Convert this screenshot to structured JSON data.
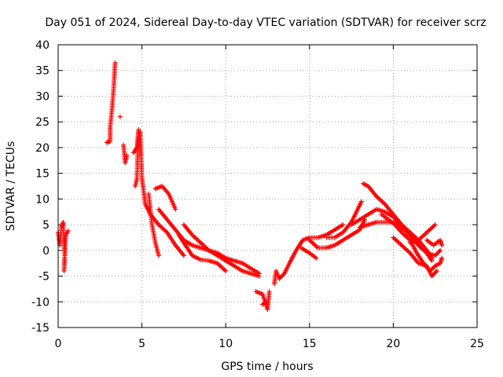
{
  "chart_data": {
    "type": "scatter",
    "title": "Day 051 of 2024, Sidereal Day-to-day VTEC variation (SDTVAR) for receiver scrz",
    "xlabel": "GPS time / hours",
    "ylabel": "SDTVAR / TECUs",
    "xlim": [
      0,
      25
    ],
    "ylim": [
      -15,
      40
    ],
    "xticks": [
      0,
      5,
      10,
      15,
      20,
      25
    ],
    "yticks": [
      -15,
      -10,
      -5,
      0,
      5,
      10,
      15,
      20,
      25,
      30,
      35,
      40
    ],
    "grid": true,
    "marker": "plus",
    "series_color": "#ff0000",
    "tracks": [
      {
        "name": "track-1",
        "points": [
          [
            0.0,
            3.5
          ],
          [
            0.1,
            1.0
          ],
          [
            0.2,
            4.5
          ],
          [
            0.3,
            5.5
          ],
          [
            0.4,
            -1.0
          ],
          [
            0.35,
            -4.0
          ],
          [
            0.45,
            3.0
          ],
          [
            0.6,
            3.8
          ]
        ]
      },
      {
        "name": "track-2",
        "points": [
          [
            2.9,
            21.0
          ],
          [
            3.1,
            21.2
          ],
          [
            3.1,
            24.0
          ],
          [
            3.2,
            27.0
          ],
          [
            3.3,
            31.0
          ],
          [
            3.4,
            36.5
          ]
        ]
      },
      {
        "name": "track-3",
        "points": [
          [
            3.7,
            26.0
          ]
        ]
      },
      {
        "name": "track-4",
        "points": [
          [
            3.9,
            20.5
          ],
          [
            4.0,
            17.0
          ],
          [
            4.1,
            18.5
          ]
        ]
      },
      {
        "name": "track-5",
        "points": [
          [
            4.5,
            19.0
          ],
          [
            4.7,
            20.0
          ],
          [
            4.8,
            23.5
          ],
          [
            4.7,
            14.0
          ],
          [
            4.6,
            12.5
          ]
        ]
      },
      {
        "name": "track-6",
        "points": [
          [
            4.9,
            23.0
          ],
          [
            5.0,
            14.0
          ],
          [
            5.2,
            9.0
          ],
          [
            5.5,
            7.0
          ],
          [
            6.0,
            5.0
          ],
          [
            6.5,
            3.5
          ],
          [
            7.0,
            1.0
          ],
          [
            7.5,
            -1.0
          ]
        ]
      },
      {
        "name": "track-7",
        "points": [
          [
            5.4,
            11.0
          ],
          [
            5.6,
            5.0
          ],
          [
            5.8,
            1.5
          ],
          [
            6.0,
            -1.0
          ]
        ]
      },
      {
        "name": "track-8",
        "points": [
          [
            5.8,
            12.0
          ],
          [
            6.2,
            12.5
          ],
          [
            6.6,
            11.0
          ],
          [
            7.0,
            8.0
          ]
        ]
      },
      {
        "name": "track-9",
        "points": [
          [
            6.0,
            8.0
          ],
          [
            6.5,
            6.0
          ],
          [
            7.0,
            4.0
          ],
          [
            7.5,
            2.0
          ],
          [
            8.0,
            1.0
          ],
          [
            8.5,
            0.5
          ],
          [
            9.0,
            0.0
          ],
          [
            9.5,
            -0.5
          ],
          [
            10.0,
            -1.5
          ],
          [
            10.5,
            -2.0
          ],
          [
            11.0,
            -2.5
          ],
          [
            11.5,
            -3.5
          ],
          [
            12.0,
            -4.5
          ]
        ]
      },
      {
        "name": "track-10",
        "points": [
          [
            7.5,
            5.0
          ],
          [
            8.0,
            3.0
          ],
          [
            8.5,
            1.5
          ],
          [
            9.0,
            0.0
          ],
          [
            9.5,
            -1.0
          ],
          [
            10.0,
            -2.0
          ],
          [
            10.5,
            -3.0
          ],
          [
            11.0,
            -4.0
          ],
          [
            11.5,
            -4.5
          ],
          [
            12.0,
            -5.0
          ]
        ]
      },
      {
        "name": "track-11",
        "points": [
          [
            7.2,
            3.0
          ],
          [
            7.6,
            1.0
          ],
          [
            8.0,
            -1.0
          ],
          [
            8.5,
            -1.8
          ],
          [
            9.0,
            -2.0
          ],
          [
            9.5,
            -2.5
          ],
          [
            10.0,
            -4.0
          ]
        ]
      },
      {
        "name": "track-12",
        "points": [
          [
            11.8,
            -8.0
          ],
          [
            12.2,
            -8.5
          ],
          [
            12.5,
            -11.5
          ],
          [
            12.6,
            -8.0
          ]
        ]
      },
      {
        "name": "track-13",
        "points": [
          [
            12.2,
            -10.5
          ],
          [
            12.4,
            -10.0
          ]
        ]
      },
      {
        "name": "track-14",
        "points": [
          [
            12.9,
            -6.5
          ],
          [
            13.0,
            -4.0
          ],
          [
            13.2,
            -5.5
          ],
          [
            13.5,
            -4.5
          ],
          [
            13.8,
            -2.5
          ],
          [
            14.2,
            0.0
          ],
          [
            14.6,
            2.0
          ],
          [
            15.0,
            2.5
          ],
          [
            15.5,
            2.5
          ],
          [
            16.0,
            3.0
          ],
          [
            16.5,
            4.0
          ],
          [
            17.0,
            5.0
          ]
        ]
      },
      {
        "name": "track-15",
        "points": [
          [
            14.5,
            0.5
          ],
          [
            15.0,
            -0.5
          ],
          [
            15.4,
            -1.5
          ]
        ]
      },
      {
        "name": "track-16",
        "points": [
          [
            15.0,
            2.0
          ],
          [
            15.5,
            0.5
          ],
          [
            16.0,
            0.5
          ],
          [
            16.5,
            1.0
          ],
          [
            17.0,
            2.0
          ],
          [
            17.5,
            3.0
          ],
          [
            18.0,
            4.0
          ],
          [
            18.3,
            6.0
          ]
        ]
      },
      {
        "name": "track-17",
        "points": [
          [
            16.0,
            2.5
          ],
          [
            16.5,
            2.5
          ],
          [
            17.0,
            3.5
          ],
          [
            17.5,
            5.5
          ],
          [
            17.8,
            7.5
          ],
          [
            18.1,
            9.5
          ]
        ]
      },
      {
        "name": "track-18",
        "points": [
          [
            17.5,
            5.0
          ],
          [
            18.0,
            6.0
          ],
          [
            18.5,
            7.0
          ],
          [
            19.0,
            8.0
          ],
          [
            19.5,
            7.5
          ],
          [
            20.0,
            6.5
          ],
          [
            20.5,
            5.0
          ],
          [
            21.0,
            3.0
          ],
          [
            21.5,
            1.0
          ],
          [
            22.0,
            -0.5
          ],
          [
            22.5,
            -1.0
          ],
          [
            22.8,
            0.0
          ]
        ]
      },
      {
        "name": "track-19",
        "points": [
          [
            18.0,
            4.5
          ],
          [
            18.5,
            5.0
          ],
          [
            19.0,
            5.5
          ],
          [
            19.5,
            5.5
          ],
          [
            20.0,
            5.5
          ],
          [
            20.5,
            4.5
          ],
          [
            21.0,
            3.0
          ],
          [
            21.5,
            1.0
          ],
          [
            22.0,
            -0.5
          ],
          [
            22.3,
            -2.0
          ]
        ]
      },
      {
        "name": "track-20",
        "points": [
          [
            18.2,
            13.0
          ],
          [
            18.5,
            12.5
          ],
          [
            19.0,
            10.5
          ],
          [
            19.5,
            9.0
          ],
          [
            20.0,
            7.0
          ],
          [
            20.5,
            5.0
          ],
          [
            21.0,
            3.5
          ],
          [
            21.5,
            2.0
          ],
          [
            22.0,
            0.0
          ],
          [
            22.3,
            -1.5
          ]
        ]
      },
      {
        "name": "track-21",
        "points": [
          [
            19.3,
            7.0
          ],
          [
            19.7,
            6.0
          ],
          [
            20.1,
            5.0
          ],
          [
            20.5,
            3.5
          ],
          [
            21.0,
            2.0
          ],
          [
            21.4,
            -0.5
          ],
          [
            21.8,
            -2.5
          ],
          [
            22.2,
            -4.0
          ],
          [
            22.5,
            -3.0
          ],
          [
            22.8,
            -2.5
          ],
          [
            22.9,
            -1.5
          ]
        ]
      },
      {
        "name": "track-22",
        "points": [
          [
            20.0,
            2.5
          ],
          [
            20.5,
            1.0
          ],
          [
            21.0,
            -0.5
          ],
          [
            21.5,
            -2.5
          ],
          [
            22.0,
            -3.0
          ],
          [
            22.3,
            -5.0
          ],
          [
            22.6,
            -4.0
          ]
        ]
      },
      {
        "name": "track-23",
        "points": [
          [
            21.0,
            1.5
          ],
          [
            21.5,
            2.0
          ],
          [
            22.0,
            3.5
          ],
          [
            22.5,
            5.0
          ]
        ]
      },
      {
        "name": "track-24",
        "points": [
          [
            22.0,
            2.0
          ],
          [
            22.4,
            1.0
          ],
          [
            22.8,
            2.0
          ],
          [
            22.9,
            1.0
          ]
        ]
      }
    ]
  }
}
